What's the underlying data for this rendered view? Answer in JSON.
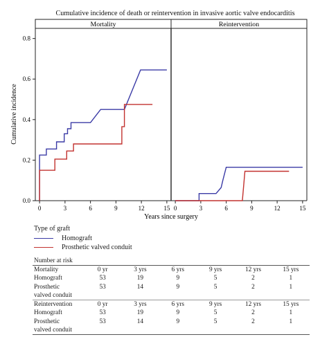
{
  "chart_data": {
    "type": "line",
    "title": "Cumulative incidence of death or reintervention in invasive aortic valve endocarditis",
    "ylabel": "Cumulative incidence",
    "xlabel": "Years since surgery",
    "ylim": [
      0,
      0.85
    ],
    "xlim": [
      -0.5,
      15.5
    ],
    "yticks": [
      "0.0",
      "0.2",
      "0.4",
      "0.6",
      "0.8"
    ],
    "xticks": [
      "0",
      "3",
      "6",
      "9",
      "12",
      "15"
    ],
    "colors": {
      "Homograft": "#3b3ba6",
      "Prosthetic valved conduit": "#c2312e"
    },
    "panels": [
      {
        "name": "Mortality",
        "series": [
          {
            "name": "Homograft",
            "points": [
              [
                0,
                0
              ],
              [
                0,
                0.225
              ],
              [
                0.8,
                0.225
              ],
              [
                0.8,
                0.255
              ],
              [
                2,
                0.255
              ],
              [
                2,
                0.29
              ],
              [
                2.9,
                0.29
              ],
              [
                2.9,
                0.33
              ],
              [
                3.3,
                0.33
              ],
              [
                3.3,
                0.355
              ],
              [
                3.7,
                0.355
              ],
              [
                3.7,
                0.385
              ],
              [
                6,
                0.385
              ],
              [
                7.2,
                0.45
              ],
              [
                10,
                0.45
              ],
              [
                11.9,
                0.645
              ],
              [
                15,
                0.645
              ]
            ]
          },
          {
            "name": "Prosthetic valved conduit",
            "points": [
              [
                0,
                0
              ],
              [
                0,
                0.15
              ],
              [
                1.8,
                0.15
              ],
              [
                1.8,
                0.205
              ],
              [
                3.2,
                0.205
              ],
              [
                3.2,
                0.245
              ],
              [
                4,
                0.245
              ],
              [
                4,
                0.28
              ],
              [
                9.7,
                0.28
              ],
              [
                9.7,
                0.365
              ],
              [
                10,
                0.365
              ],
              [
                10,
                0.475
              ],
              [
                13.3,
                0.475
              ]
            ]
          }
        ]
      },
      {
        "name": "Reintervention",
        "series": [
          {
            "name": "Homograft",
            "points": [
              [
                0,
                0
              ],
              [
                2.8,
                0
              ],
              [
                2.8,
                0.035
              ],
              [
                4.8,
                0.035
              ],
              [
                5.4,
                0.065
              ],
              [
                5.6,
                0.1
              ],
              [
                6,
                0.165
              ],
              [
                15,
                0.165
              ]
            ]
          },
          {
            "name": "Prosthetic valved conduit",
            "points": [
              [
                0,
                0
              ],
              [
                7.9,
                0
              ],
              [
                8.2,
                0.145
              ],
              [
                13.4,
                0.145
              ]
            ]
          }
        ]
      }
    ]
  },
  "legend": {
    "title": "Type of graft",
    "items": [
      {
        "label": "Homograft",
        "color": "#3b3ba6"
      },
      {
        "label": "Prosthetic valved conduit",
        "color": "#c2312e"
      }
    ]
  },
  "risk_table": {
    "header": "Number at risk",
    "sections": [
      {
        "label": "Mortality",
        "times": [
          "0 yr",
          "3 yrs",
          "6 yrs",
          "9 yrs",
          "12 yrs",
          "15 yrs"
        ],
        "rows": [
          {
            "label": "Homograft",
            "values": [
              "53",
              "19",
              "9",
              "5",
              "2",
              "1"
            ]
          },
          {
            "label": "Prosthetic",
            "label2": "valved conduit",
            "values": [
              "53",
              "14",
              "9",
              "5",
              "2",
              "1"
            ]
          }
        ]
      },
      {
        "label": "Reintervention",
        "times": [
          "0 yr",
          "3 yrs",
          "6 yrs",
          "9 yrs",
          "12 yrs",
          "15 yrs"
        ],
        "rows": [
          {
            "label": "Homograft",
            "values": [
              "53",
              "19",
              "9",
              "5",
              "2",
              "1"
            ]
          },
          {
            "label": "Prosthetic",
            "label2": "valved conduit",
            "values": [
              "53",
              "14",
              "9",
              "5",
              "2",
              "1"
            ]
          }
        ]
      }
    ]
  }
}
